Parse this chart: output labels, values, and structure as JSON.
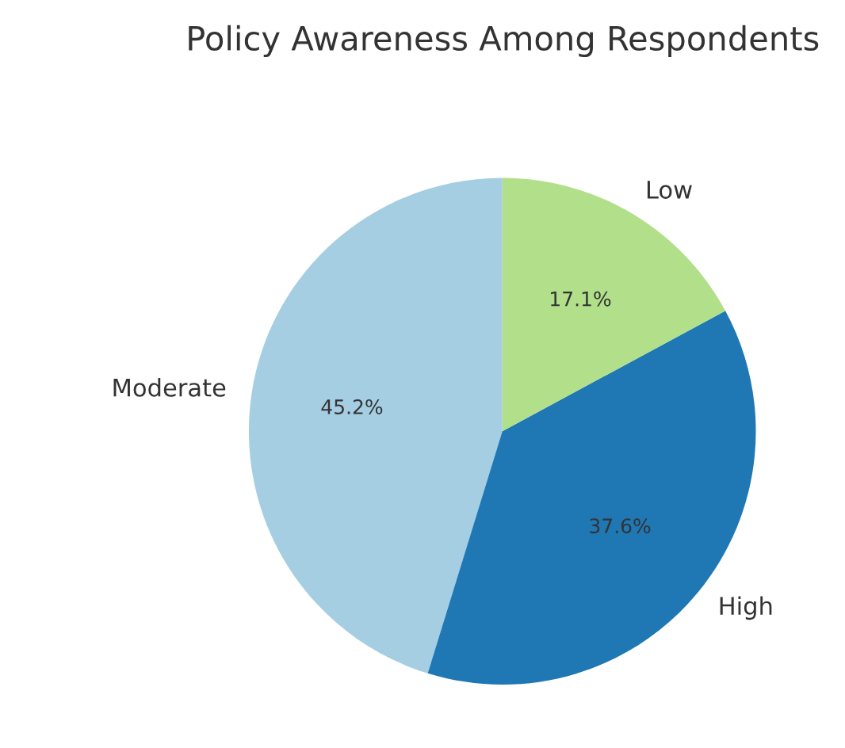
{
  "chart_data": {
    "type": "pie",
    "title": "Policy Awareness Among Respondents",
    "categories": [
      "Moderate",
      "High",
      "Low"
    ],
    "values": [
      45.2,
      37.6,
      17.1
    ],
    "colors": [
      "#a6cee3",
      "#1f78b4",
      "#b2df8a"
    ],
    "value_labels": [
      "45.2%",
      "37.6%",
      "17.1%"
    ],
    "legend": false
  }
}
